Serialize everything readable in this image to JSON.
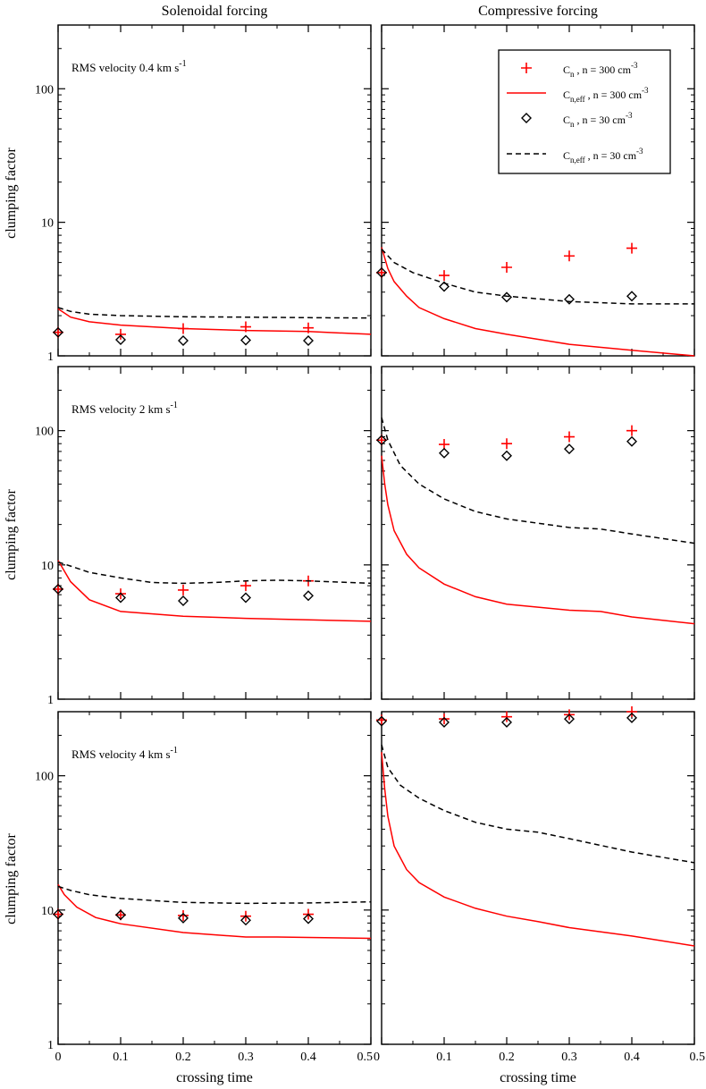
{
  "columns": [
    "Solenoidal forcing",
    "Compressive forcing"
  ],
  "ylabel": "clumping factor",
  "xlabel": "crossing time",
  "legend": {
    "placement": "top-right of upper-right panel",
    "entries": [
      {
        "base": "C",
        "sub": "n",
        "rest": " , n = 300 cm",
        "sup": "-3",
        "style": "plus-red"
      },
      {
        "base": "C",
        "sub": "n,eff",
        "rest": " , n = 300 cm",
        "sup": "-3",
        "style": "solid-red"
      },
      {
        "base": "C",
        "sub": "n",
        "rest": " , n = 30 cm",
        "sup": "-3",
        "style": "diamond-black"
      },
      {
        "base": "C",
        "sub": "n,eff",
        "rest": " , n = 30 cm",
        "sup": "-3",
        "style": "dashed-black"
      }
    ]
  },
  "colors": {
    "red": "#ff0000",
    "black": "#000000"
  },
  "chart_data": [
    {
      "type": "scatter",
      "row": 0,
      "col": 0,
      "annotation": {
        "text": "RMS velocity 0.4 km s",
        "sup": "-1"
      },
      "xlim": [
        0,
        0.5
      ],
      "ylim": [
        1,
        300
      ],
      "yscale": "log",
      "xticks": [
        "0",
        "0.1",
        "0.2",
        "0.3",
        "0.4",
        "0.5"
      ],
      "yticks": [
        "1",
        "10",
        "100"
      ],
      "series": [
        {
          "name": "Cn n=300",
          "kind": "plus",
          "color": "red",
          "x": [
            0,
            0.1,
            0.2,
            0.3,
            0.4
          ],
          "y": [
            1.5,
            1.45,
            1.6,
            1.65,
            1.62
          ]
        },
        {
          "name": "Cn n=30",
          "kind": "diamond",
          "color": "black",
          "x": [
            0,
            0.1,
            0.2,
            0.3,
            0.4
          ],
          "y": [
            1.5,
            1.32,
            1.3,
            1.31,
            1.3
          ]
        },
        {
          "name": "Cn,eff n=300",
          "kind": "solid",
          "color": "red",
          "x": [
            0,
            0.02,
            0.05,
            0.1,
            0.2,
            0.3,
            0.4,
            0.5
          ],
          "y": [
            2.25,
            1.95,
            1.8,
            1.7,
            1.6,
            1.55,
            1.52,
            1.45
          ]
        },
        {
          "name": "Cn,eff n=30",
          "kind": "dashed",
          "color": "black",
          "x": [
            0,
            0.02,
            0.05,
            0.1,
            0.2,
            0.3,
            0.4,
            0.5
          ],
          "y": [
            2.3,
            2.15,
            2.05,
            2.0,
            1.96,
            1.95,
            1.93,
            1.92
          ]
        }
      ]
    },
    {
      "type": "scatter",
      "row": 0,
      "col": 1,
      "xlim": [
        0,
        0.5
      ],
      "ylim": [
        1,
        300
      ],
      "yscale": "log",
      "xticks": [
        "0",
        "0.1",
        "0.2",
        "0.3",
        "0.4",
        "0.5"
      ],
      "yticks": [
        "1",
        "10",
        "100"
      ],
      "series": [
        {
          "name": "Cn n=300",
          "kind": "plus",
          "color": "red",
          "x": [
            0,
            0.1,
            0.2,
            0.3,
            0.4
          ],
          "y": [
            4.2,
            4.0,
            4.6,
            5.6,
            6.4
          ]
        },
        {
          "name": "Cn n=30",
          "kind": "diamond",
          "color": "black",
          "x": [
            0,
            0.1,
            0.2,
            0.3,
            0.4
          ],
          "y": [
            4.2,
            3.3,
            2.75,
            2.65,
            2.8
          ]
        },
        {
          "name": "Cn,eff n=300",
          "kind": "solid",
          "color": "red",
          "x": [
            0,
            0.01,
            0.02,
            0.04,
            0.06,
            0.1,
            0.15,
            0.2,
            0.3,
            0.4,
            0.5
          ],
          "y": [
            6.5,
            4.5,
            3.6,
            2.8,
            2.3,
            1.9,
            1.6,
            1.45,
            1.22,
            1.1,
            1.0
          ]
        },
        {
          "name": "Cn,eff n=30",
          "kind": "dashed",
          "color": "black",
          "x": [
            0,
            0.02,
            0.05,
            0.1,
            0.15,
            0.2,
            0.3,
            0.4,
            0.5
          ],
          "y": [
            6.3,
            5.0,
            4.2,
            3.5,
            3.0,
            2.8,
            2.55,
            2.45,
            2.45
          ]
        }
      ]
    },
    {
      "type": "scatter",
      "row": 1,
      "col": 0,
      "annotation": {
        "text": "RMS velocity 2 km s",
        "sup": "-1"
      },
      "xlim": [
        0,
        0.5
      ],
      "ylim": [
        1,
        300
      ],
      "yscale": "log",
      "xticks": [
        "0",
        "0.1",
        "0.2",
        "0.3",
        "0.4",
        "0.5"
      ],
      "yticks": [
        "1",
        "10",
        "100"
      ],
      "series": [
        {
          "name": "Cn n=300",
          "kind": "plus",
          "color": "red",
          "x": [
            0,
            0.1,
            0.2,
            0.3,
            0.4
          ],
          "y": [
            6.6,
            6.1,
            6.5,
            7.0,
            7.6
          ]
        },
        {
          "name": "Cn n=30",
          "kind": "diamond",
          "color": "black",
          "x": [
            0,
            0.1,
            0.2,
            0.3,
            0.4
          ],
          "y": [
            6.6,
            5.7,
            5.4,
            5.7,
            5.9
          ]
        },
        {
          "name": "Cn,eff n=300",
          "kind": "solid",
          "color": "red",
          "x": [
            0,
            0.02,
            0.05,
            0.1,
            0.2,
            0.3,
            0.4,
            0.5
          ],
          "y": [
            10.8,
            7.5,
            5.5,
            4.5,
            4.15,
            4.0,
            3.9,
            3.8
          ]
        },
        {
          "name": "Cn,eff n=30",
          "kind": "dashed",
          "color": "black",
          "x": [
            0,
            0.02,
            0.05,
            0.1,
            0.15,
            0.2,
            0.25,
            0.3,
            0.35,
            0.4,
            0.5
          ],
          "y": [
            10.5,
            9.8,
            8.8,
            8.0,
            7.4,
            7.3,
            7.4,
            7.6,
            7.7,
            7.6,
            7.3
          ]
        }
      ]
    },
    {
      "type": "scatter",
      "row": 1,
      "col": 1,
      "xlim": [
        0,
        0.5
      ],
      "ylim": [
        1,
        300
      ],
      "yscale": "log",
      "xticks": [
        "0",
        "0.1",
        "0.2",
        "0.3",
        "0.4",
        "0.5"
      ],
      "yticks": [
        "1",
        "10",
        "100"
      ],
      "series": [
        {
          "name": "Cn n=300",
          "kind": "plus",
          "color": "red",
          "x": [
            0,
            0.1,
            0.2,
            0.3,
            0.4
          ],
          "y": [
            85,
            79,
            80,
            90,
            100
          ]
        },
        {
          "name": "Cn n=30",
          "kind": "diamond",
          "color": "black",
          "x": [
            0,
            0.1,
            0.2,
            0.3,
            0.4
          ],
          "y": [
            85,
            68,
            65,
            73,
            83
          ]
        },
        {
          "name": "Cn,eff n=300",
          "kind": "solid",
          "color": "red",
          "x": [
            0,
            0.005,
            0.01,
            0.02,
            0.04,
            0.06,
            0.1,
            0.15,
            0.2,
            0.3,
            0.35,
            0.4,
            0.5
          ],
          "y": [
            65,
            40,
            28,
            18,
            12,
            9.5,
            7.2,
            5.8,
            5.1,
            4.6,
            4.5,
            4.1,
            3.65
          ]
        },
        {
          "name": "Cn,eff n=30",
          "kind": "dashed",
          "color": "black",
          "x": [
            0,
            0.01,
            0.03,
            0.06,
            0.1,
            0.15,
            0.2,
            0.3,
            0.35,
            0.4,
            0.5
          ],
          "y": [
            125,
            85,
            55,
            40,
            31,
            25,
            22,
            19,
            18.5,
            17,
            14.5
          ]
        }
      ]
    },
    {
      "type": "scatter",
      "row": 2,
      "col": 0,
      "annotation": {
        "text": "RMS velocity 4 km s",
        "sup": "-1"
      },
      "xlim": [
        0,
        0.5
      ],
      "ylim": [
        1,
        300
      ],
      "yscale": "log",
      "xticks": [
        "0",
        "0.1",
        "0.2",
        "0.3",
        "0.4",
        "0.5"
      ],
      "yticks": [
        "1",
        "10",
        "100"
      ],
      "series": [
        {
          "name": "Cn n=300",
          "kind": "plus",
          "color": "red",
          "x": [
            0,
            0.1,
            0.2,
            0.3,
            0.4
          ],
          "y": [
            9.3,
            9.2,
            9.1,
            9.0,
            9.3
          ]
        },
        {
          "name": "Cn n=30",
          "kind": "diamond",
          "color": "black",
          "x": [
            0,
            0.1,
            0.2,
            0.3,
            0.4
          ],
          "y": [
            9.3,
            9.2,
            8.7,
            8.4,
            8.6
          ]
        },
        {
          "name": "Cn,eff n=300",
          "kind": "solid",
          "color": "red",
          "x": [
            0,
            0.01,
            0.03,
            0.06,
            0.1,
            0.2,
            0.3,
            0.35,
            0.4,
            0.5
          ],
          "y": [
            15.5,
            13,
            10.5,
            8.8,
            7.9,
            6.8,
            6.3,
            6.3,
            6.25,
            6.15
          ]
        },
        {
          "name": "Cn,eff n=30",
          "kind": "dashed",
          "color": "black",
          "x": [
            0,
            0.02,
            0.05,
            0.1,
            0.2,
            0.3,
            0.4,
            0.5
          ],
          "y": [
            15,
            14,
            13,
            12.2,
            11.4,
            11.2,
            11.3,
            11.5
          ]
        }
      ]
    },
    {
      "type": "scatter",
      "row": 2,
      "col": 1,
      "xlim": [
        0,
        0.5
      ],
      "ylim": [
        1,
        300
      ],
      "yscale": "log",
      "xticks": [
        "0",
        "0.1",
        "0.2",
        "0.3",
        "0.4",
        "0.5"
      ],
      "yticks": [
        "1",
        "10",
        "100"
      ],
      "series": [
        {
          "name": "Cn n=300",
          "kind": "plus",
          "color": "red",
          "x": [
            0,
            0.1,
            0.2,
            0.3,
            0.4
          ],
          "y": [
            260,
            265,
            275,
            285,
            300
          ]
        },
        {
          "name": "Cn n=30",
          "kind": "diamond",
          "color": "black",
          "x": [
            0,
            0.1,
            0.2,
            0.3,
            0.4
          ],
          "y": [
            255,
            250,
            250,
            265,
            270
          ]
        },
        {
          "name": "Cn,eff n=300",
          "kind": "solid",
          "color": "red",
          "x": [
            0,
            0.005,
            0.01,
            0.02,
            0.04,
            0.06,
            0.1,
            0.15,
            0.2,
            0.25,
            0.3,
            0.4,
            0.5
          ],
          "y": [
            150,
            80,
            50,
            30,
            20,
            16,
            12.5,
            10.3,
            9.0,
            8.2,
            7.4,
            6.4,
            5.4
          ]
        },
        {
          "name": "Cn,eff n=30",
          "kind": "dashed",
          "color": "black",
          "x": [
            0,
            0.01,
            0.03,
            0.06,
            0.1,
            0.15,
            0.2,
            0.25,
            0.3,
            0.4,
            0.5
          ],
          "y": [
            170,
            115,
            85,
            68,
            55,
            45,
            40,
            38,
            34,
            27,
            22.5
          ]
        }
      ]
    }
  ]
}
